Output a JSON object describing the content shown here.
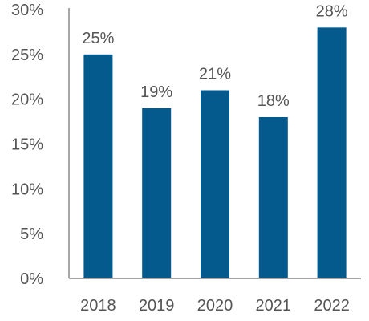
{
  "chart_data": {
    "type": "bar",
    "categories": [
      "2018",
      "2019",
      "2020",
      "2021",
      "2022"
    ],
    "values": [
      25,
      19,
      21,
      18,
      28
    ],
    "data_labels": [
      "25%",
      "19%",
      "21%",
      "18%",
      "28%"
    ],
    "title": "",
    "xlabel": "",
    "ylabel": "",
    "ylim": [
      0,
      30
    ],
    "yticks": [
      0,
      5,
      10,
      15,
      20,
      25,
      30
    ],
    "ytick_labels": [
      "0%",
      "5%",
      "10%",
      "15%",
      "20%",
      "25%",
      "30%"
    ],
    "grid": false,
    "legend": "none",
    "bar_color": "#045A8D"
  }
}
